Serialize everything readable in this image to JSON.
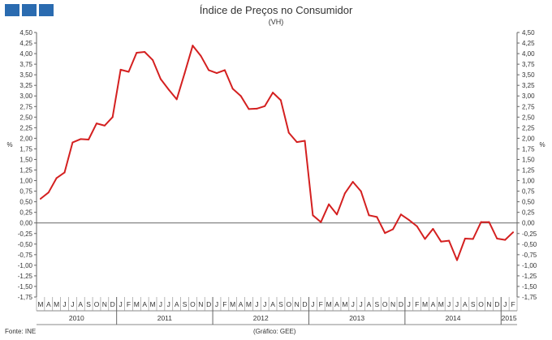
{
  "header": {
    "title": "Índice de Preços no Consumidor",
    "subtitle": "(VH)"
  },
  "footer": {
    "source": "Fonte: INE",
    "credit": "(Gráfico: GEE)"
  },
  "logo": {
    "icon": "gee-logo-icon",
    "color": "#2a6bb0"
  },
  "chart_data": {
    "type": "line",
    "title": "Índice de Preços no Consumidor",
    "subtitle": "(VH)",
    "ylabel": "%",
    "ylabel_right": "%",
    "ylim": [
      -1.75,
      4.5
    ],
    "ystep": 0.25,
    "y_ticks": [
      "4,50",
      "4,25",
      "4,00",
      "3,75",
      "3,50",
      "3,25",
      "3,00",
      "2,75",
      "2,50",
      "2,25",
      "2,00",
      "1,75",
      "1,50",
      "1,25",
      "1,00",
      "0,75",
      "0,50",
      "0,25",
      "0,00",
      "-0,25",
      "-0,50",
      "-0,75",
      "-1,00",
      "-1,25",
      "-1,50",
      "-1,75"
    ],
    "grid": false,
    "line_color": "#d42020",
    "month_labels": [
      "M",
      "A",
      "M",
      "J",
      "J",
      "A",
      "S",
      "O",
      "N",
      "D",
      "J",
      "F",
      "M",
      "A",
      "M",
      "J",
      "J",
      "A",
      "S",
      "O",
      "N",
      "D",
      "J",
      "F",
      "M",
      "A",
      "M",
      "J",
      "J",
      "A",
      "S",
      "O",
      "N",
      "D",
      "J",
      "F",
      "M",
      "A",
      "M",
      "J",
      "J",
      "A",
      "S",
      "O",
      "N",
      "D",
      "J",
      "F",
      "M",
      "A",
      "M",
      "J",
      "J",
      "A",
      "S",
      "O",
      "N",
      "D",
      "J",
      "F"
    ],
    "years": [
      {
        "label": "2010",
        "months": 10
      },
      {
        "label": "2011",
        "months": 12
      },
      {
        "label": "2012",
        "months": 12
      },
      {
        "label": "2013",
        "months": 12
      },
      {
        "label": "2014",
        "months": 12
      },
      {
        "label": "2015",
        "months": 2
      }
    ],
    "series": [
      {
        "values": [
          0.57,
          0.72,
          1.06,
          1.19,
          1.9,
          1.98,
          1.97,
          2.35,
          2.3,
          2.5,
          3.62,
          3.57,
          4.02,
          4.04,
          3.85,
          3.4,
          3.15,
          2.92,
          3.54,
          4.19,
          3.95,
          3.61,
          3.54,
          3.61,
          3.17,
          3.0,
          2.69,
          2.7,
          2.76,
          3.08,
          2.9,
          2.13,
          1.91,
          1.94,
          0.18,
          0.02,
          0.44,
          0.2,
          0.7,
          0.97,
          0.75,
          0.18,
          0.14,
          -0.24,
          -0.15,
          0.2,
          0.07,
          -0.08,
          -0.38,
          -0.14,
          -0.44,
          -0.42,
          -0.88,
          -0.37,
          -0.38,
          0.02,
          0.02,
          -0.37,
          -0.4,
          -0.22
        ]
      }
    ]
  }
}
